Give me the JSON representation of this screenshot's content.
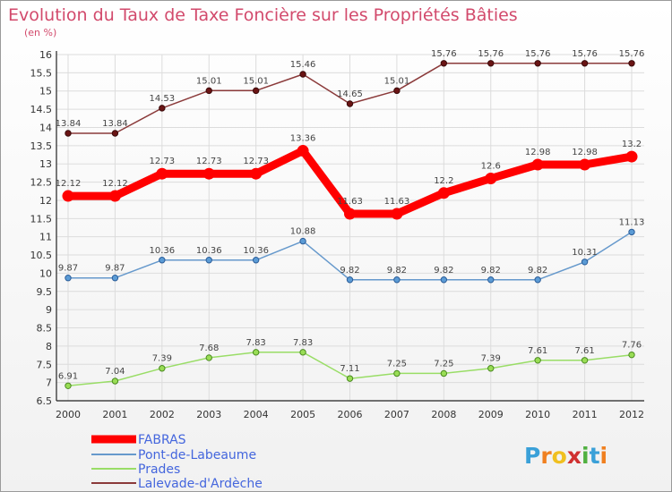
{
  "chart_data": {
    "type": "line",
    "title": "Evolution du Taux de Taxe Foncière sur les Propriétés Bâties",
    "subtitle": "(en %)",
    "x": [
      "2000",
      "2001",
      "2002",
      "2003",
      "2004",
      "2005",
      "2006",
      "2007",
      "2008",
      "2009",
      "2010",
      "2011",
      "2012"
    ],
    "ylim": [
      6.5,
      16
    ],
    "yticks": [
      "6.5",
      "7",
      "7.5",
      "8",
      "8.5",
      "9",
      "9.5",
      "10",
      "10.5",
      "11",
      "11.5",
      "12",
      "12.5",
      "13",
      "13.5",
      "14",
      "14.5",
      "15",
      "15.5",
      "16"
    ],
    "grid": true,
    "legend_position": "bottom-left",
    "series": [
      {
        "name": "FABRAS",
        "color": "#ff0000",
        "values": [
          12.12,
          12.12,
          12.73,
          12.73,
          12.73,
          13.36,
          11.63,
          11.63,
          12.2,
          12.6,
          12.98,
          12.98,
          13.2
        ],
        "labels": [
          "12.12",
          "12.12",
          "12.73",
          "12.73",
          "12.73",
          "13.36",
          "11.63",
          "11.63",
          "12.2",
          "12.6",
          "12.98",
          "12.98",
          "13.2"
        ]
      },
      {
        "name": "Pont-de-Labeaume",
        "color": "#6699cc",
        "values": [
          9.87,
          9.87,
          10.36,
          10.36,
          10.36,
          10.88,
          9.82,
          9.82,
          9.82,
          9.82,
          9.82,
          10.31,
          11.13
        ],
        "labels": [
          "9.87",
          "9.87",
          "10.36",
          "10.36",
          "10.36",
          "10.88",
          "9.82",
          "9.82",
          "9.82",
          "9.82",
          "9.82",
          "10.31",
          "11.13"
        ]
      },
      {
        "name": "Prades",
        "color": "#99dd66",
        "values": [
          6.91,
          7.04,
          7.39,
          7.68,
          7.83,
          7.83,
          7.11,
          7.25,
          7.25,
          7.39,
          7.61,
          7.61,
          7.76
        ],
        "labels": [
          "6.91",
          "7.04",
          "7.39",
          "7.68",
          "7.83",
          "7.83",
          "7.11",
          "7.25",
          "7.25",
          "7.39",
          "7.61",
          "7.61",
          "7.76"
        ]
      },
      {
        "name": "Lalevade-d'Ardèche",
        "color": "#8b3a3a",
        "values": [
          13.84,
          13.84,
          14.53,
          15.01,
          15.01,
          15.46,
          14.65,
          15.01,
          15.76,
          15.76,
          15.76,
          15.76,
          15.76
        ],
        "labels": [
          "13.84",
          "13.84",
          "14.53",
          "15.01",
          "15.01",
          "15.46",
          "14.65",
          "15.01",
          "15.76",
          "15.76",
          "15.76",
          "15.76",
          "15.76"
        ]
      }
    ]
  },
  "logo": {
    "letters": [
      "P",
      "r",
      "o",
      "x",
      "i",
      "t",
      "i"
    ],
    "colors": [
      "#3aa0d8",
      "#f08020",
      "#f0c020",
      "#d03030",
      "#50b040",
      "#3aa0d8",
      "#f08020"
    ]
  },
  "legend_text_color": "#4466dd"
}
